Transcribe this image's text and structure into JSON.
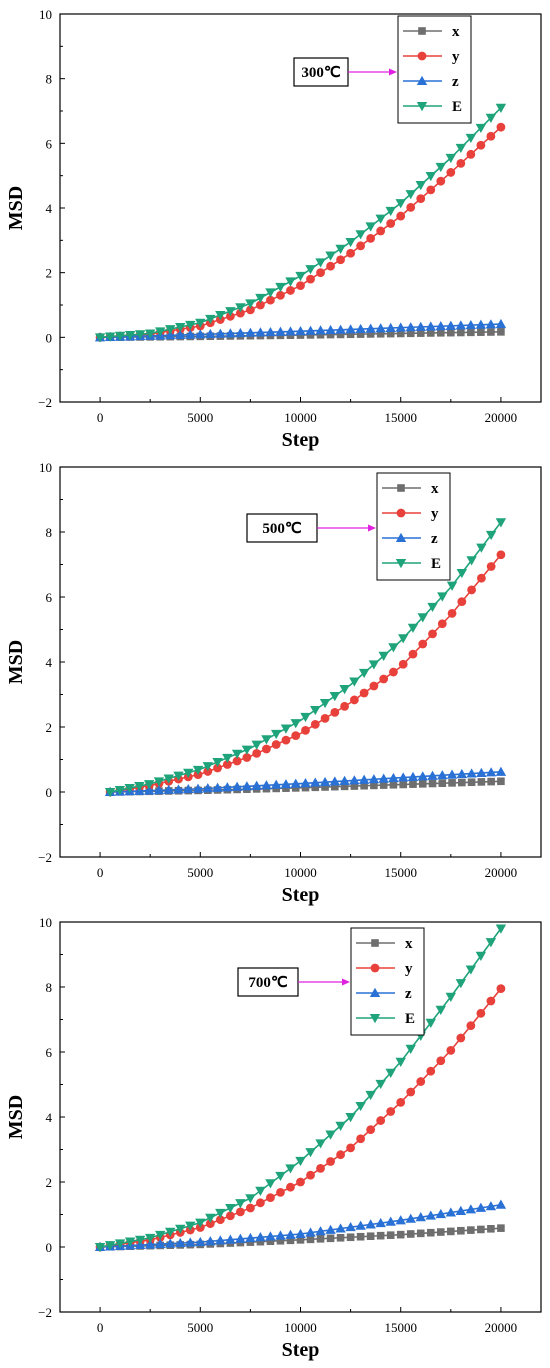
{
  "chart_data": [
    {
      "type": "line",
      "xlabel": "Step",
      "ylabel": "MSD",
      "xlim": [
        -2000,
        22000
      ],
      "ylim": [
        -2,
        10
      ],
      "xticks": [
        0,
        5000,
        10000,
        15000,
        20000
      ],
      "yticks": [
        -2,
        0,
        2,
        4,
        6,
        8,
        10
      ],
      "annotation": "300℃",
      "legend_position": "top-right",
      "grid": false,
      "series": [
        {
          "name": "x",
          "color": "#6e6e6e",
          "marker": "square",
          "x": [
            0,
            5000,
            10000,
            15000,
            20000
          ],
          "y": [
            0,
            0.03,
            0.07,
            0.12,
            0.17
          ]
        },
        {
          "name": "y",
          "color": "#e8403a",
          "marker": "circle",
          "x": [
            0,
            2500,
            5000,
            7500,
            10000,
            12500,
            15000,
            17500,
            20000
          ],
          "y": [
            0,
            0.1,
            0.35,
            0.85,
            1.6,
            2.6,
            3.75,
            5.1,
            6.5
          ]
        },
        {
          "name": "z",
          "color": "#2a71d6",
          "marker": "triangle-up",
          "x": [
            0,
            5000,
            10000,
            15000,
            20000
          ],
          "y": [
            0,
            0.09,
            0.19,
            0.3,
            0.41
          ]
        },
        {
          "name": "E",
          "color": "#1fa37a",
          "marker": "triangle-down",
          "x": [
            0,
            2500,
            5000,
            7500,
            10000,
            12500,
            15000,
            17500,
            20000
          ],
          "y": [
            0,
            0.12,
            0.45,
            1.05,
            1.9,
            2.95,
            4.15,
            5.55,
            7.1
          ]
        }
      ]
    },
    {
      "type": "line",
      "xlabel": "Step",
      "ylabel": "MSD",
      "xlim": [
        -2000,
        22000
      ],
      "ylim": [
        -2,
        10
      ],
      "xticks": [
        0,
        5000,
        10000,
        15000,
        20000
      ],
      "yticks": [
        -2,
        0,
        2,
        4,
        6,
        8,
        10
      ],
      "annotation": "500℃",
      "legend_position": "top-right",
      "grid": false,
      "series": [
        {
          "name": "x",
          "color": "#6e6e6e",
          "marker": "square",
          "x": [
            500,
            5000,
            10000,
            15000,
            20000
          ],
          "y": [
            0,
            0.05,
            0.13,
            0.23,
            0.33
          ]
        },
        {
          "name": "y",
          "color": "#e8403a",
          "marker": "circle",
          "x": [
            500,
            2500,
            5000,
            7500,
            10000,
            12500,
            15000,
            17500,
            20000
          ],
          "y": [
            0,
            0.2,
            0.55,
            1.1,
            1.8,
            2.75,
            3.85,
            5.45,
            7.3
          ]
        },
        {
          "name": "z",
          "color": "#2a71d6",
          "marker": "triangle-up",
          "x": [
            500,
            5000,
            10000,
            15000,
            20000
          ],
          "y": [
            0,
            0.1,
            0.26,
            0.44,
            0.62
          ]
        },
        {
          "name": "E",
          "color": "#1fa37a",
          "marker": "triangle-down",
          "x": [
            500,
            2500,
            5000,
            7500,
            10000,
            12500,
            15000,
            17500,
            20000
          ],
          "y": [
            0,
            0.25,
            0.7,
            1.35,
            2.2,
            3.3,
            4.65,
            6.3,
            8.3
          ]
        }
      ]
    },
    {
      "type": "line",
      "xlabel": "Step",
      "ylabel": "MSD",
      "xlim": [
        -2000,
        22000
      ],
      "ylim": [
        -2,
        10
      ],
      "xticks": [
        0,
        5000,
        10000,
        15000,
        20000
      ],
      "yticks": [
        -2,
        0,
        2,
        4,
        6,
        8,
        10
      ],
      "annotation": "700℃",
      "legend_position": "top-right",
      "grid": false,
      "series": [
        {
          "name": "x",
          "color": "#6e6e6e",
          "marker": "square",
          "x": [
            0,
            5000,
            10000,
            15000,
            20000
          ],
          "y": [
            0,
            0.08,
            0.22,
            0.38,
            0.58
          ]
        },
        {
          "name": "y",
          "color": "#e8403a",
          "marker": "circle",
          "x": [
            0,
            2500,
            5000,
            7500,
            10000,
            12500,
            15000,
            17500,
            20000
          ],
          "y": [
            0,
            0.22,
            0.6,
            1.2,
            2.0,
            3.05,
            4.45,
            6.05,
            7.95
          ]
        },
        {
          "name": "z",
          "color": "#2a71d6",
          "marker": "triangle-up",
          "x": [
            0,
            5000,
            10000,
            15000,
            20000
          ],
          "y": [
            0,
            0.15,
            0.4,
            0.82,
            1.3
          ]
        },
        {
          "name": "E",
          "color": "#1fa37a",
          "marker": "triangle-down",
          "x": [
            0,
            2500,
            5000,
            7500,
            10000,
            12500,
            15000,
            17500,
            20000
          ],
          "y": [
            0,
            0.28,
            0.75,
            1.5,
            2.65,
            4.0,
            5.7,
            7.7,
            9.8
          ]
        }
      ]
    }
  ]
}
